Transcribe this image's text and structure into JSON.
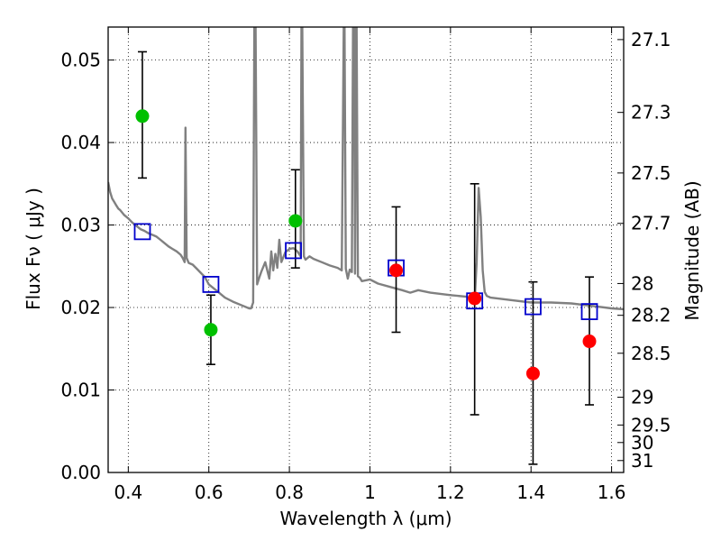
{
  "chart_data": {
    "type": "scatter",
    "title": "",
    "xlabel": "Wavelength  λ (μm)",
    "ylabel": "Flux  Fν  ( μJy )",
    "y2label": "Magnitude (AB)",
    "xlim": [
      0.35,
      1.63
    ],
    "ylim": [
      0.0,
      0.054
    ],
    "grid": true,
    "x_ticks": [
      0.4,
      0.6,
      0.8,
      1.0,
      1.2,
      1.4,
      1.6
    ],
    "x_tick_labels": [
      "0.4",
      "0.6",
      "0.8",
      "1",
      "1.2",
      "1.4",
      "1.6"
    ],
    "y_ticks": [
      0.0,
      0.01,
      0.02,
      0.03,
      0.04,
      0.05
    ],
    "y_tick_labels": [
      "0.00",
      "0.01",
      "0.02",
      "0.03",
      "0.04",
      "0.05"
    ],
    "right_axis": {
      "magnitudes": [
        27.1,
        27.3,
        27.5,
        27.7,
        28,
        28.2,
        28.5,
        29,
        29.5,
        30,
        31
      ],
      "labels": [
        "27.1",
        "27.3",
        "27.5",
        "27.7",
        "28",
        "28.2",
        "28.5",
        "29",
        "29.5",
        "30",
        "31"
      ]
    },
    "colors": {
      "sed": "#808080",
      "green": "#00c000",
      "red": "#ff0000",
      "model": "#0000cc",
      "errorbar": "#000000"
    },
    "series": [
      {
        "style": "line",
        "color": "#808080",
        "x": [
          0.35,
          0.355,
          0.36,
          0.365,
          0.37,
          0.375,
          0.38,
          0.39,
          0.4,
          0.41,
          0.42,
          0.43,
          0.44,
          0.45,
          0.46,
          0.47,
          0.48,
          0.49,
          0.5,
          0.51,
          0.52,
          0.53,
          0.535,
          0.54,
          0.542,
          0.545,
          0.55,
          0.56,
          0.57,
          0.58,
          0.59,
          0.6,
          0.62,
          0.64,
          0.66,
          0.68,
          0.7,
          0.705,
          0.71,
          0.713,
          0.716,
          0.72,
          0.725,
          0.73,
          0.74,
          0.75,
          0.755,
          0.76,
          0.765,
          0.77,
          0.775,
          0.78,
          0.79,
          0.8,
          0.81,
          0.82,
          0.828,
          0.83,
          0.832,
          0.836,
          0.84,
          0.85,
          0.86,
          0.88,
          0.9,
          0.92,
          0.93,
          0.935,
          0.937,
          0.94,
          0.945,
          0.95,
          0.955,
          0.958,
          0.961,
          0.963,
          0.965,
          0.967,
          0.97,
          0.975,
          0.98,
          1.0,
          1.02,
          1.05,
          1.08,
          1.1,
          1.12,
          1.15,
          1.2,
          1.24,
          1.26,
          1.265,
          1.27,
          1.275,
          1.28,
          1.285,
          1.29,
          1.3,
          1.35,
          1.4,
          1.45,
          1.5,
          1.55,
          1.6,
          1.63
        ],
        "y": [
          0.0352,
          0.034,
          0.0332,
          0.0328,
          0.0324,
          0.032,
          0.0318,
          0.0312,
          0.0308,
          0.0303,
          0.0299,
          0.0295,
          0.0293,
          0.029,
          0.0288,
          0.0286,
          0.0282,
          0.0278,
          0.0274,
          0.0271,
          0.0268,
          0.0264,
          0.026,
          0.0255,
          0.0418,
          0.026,
          0.0254,
          0.0252,
          0.0247,
          0.0242,
          0.0237,
          0.0228,
          0.022,
          0.0212,
          0.0207,
          0.0203,
          0.0199,
          0.0199,
          0.0206,
          0.054,
          0.054,
          0.0228,
          0.0236,
          0.0243,
          0.0255,
          0.0235,
          0.0268,
          0.0245,
          0.0265,
          0.0248,
          0.0282,
          0.0255,
          0.0267,
          0.0271,
          0.0272,
          0.0268,
          0.0262,
          0.054,
          0.054,
          0.0262,
          0.0258,
          0.0262,
          0.0259,
          0.0255,
          0.0251,
          0.0248,
          0.0245,
          0.054,
          0.054,
          0.0247,
          0.0235,
          0.0246,
          0.0243,
          0.054,
          0.054,
          0.0241,
          0.054,
          0.054,
          0.0238,
          0.0236,
          0.0232,
          0.0234,
          0.0229,
          0.0225,
          0.0221,
          0.0218,
          0.0221,
          0.0218,
          0.0215,
          0.0213,
          0.0208,
          0.0255,
          0.0345,
          0.031,
          0.0245,
          0.0219,
          0.0214,
          0.0212,
          0.0209,
          0.0206,
          0.0206,
          0.0205,
          0.0202,
          0.0199,
          0.0198
        ]
      },
      {
        "style": "open-square",
        "color": "#0000cc",
        "x": [
          0.435,
          0.605,
          0.81,
          1.065,
          1.26,
          1.405,
          1.545
        ],
        "y": [
          0.0292,
          0.0228,
          0.0269,
          0.0248,
          0.0208,
          0.0201,
          0.0195
        ]
      },
      {
        "style": "errorbar-point",
        "color": "#00c000",
        "x": [
          0.435,
          0.605,
          0.815
        ],
        "y": [
          0.0432,
          0.0173,
          0.0305
        ],
        "yerr_low": [
          0.0075,
          0.0042,
          0.0057
        ],
        "yerr_high": [
          0.0078,
          0.0042,
          0.0062
        ]
      },
      {
        "style": "errorbar-point",
        "color": "#ff0000",
        "x": [
          1.065,
          1.26,
          1.405,
          1.545
        ],
        "y": [
          0.0245,
          0.0211,
          0.012,
          0.0159
        ],
        "yerr_low": [
          0.0075,
          0.0141,
          0.011,
          0.0077
        ],
        "yerr_high": [
          0.0077,
          0.0139,
          0.0111,
          0.0078
        ]
      }
    ]
  }
}
